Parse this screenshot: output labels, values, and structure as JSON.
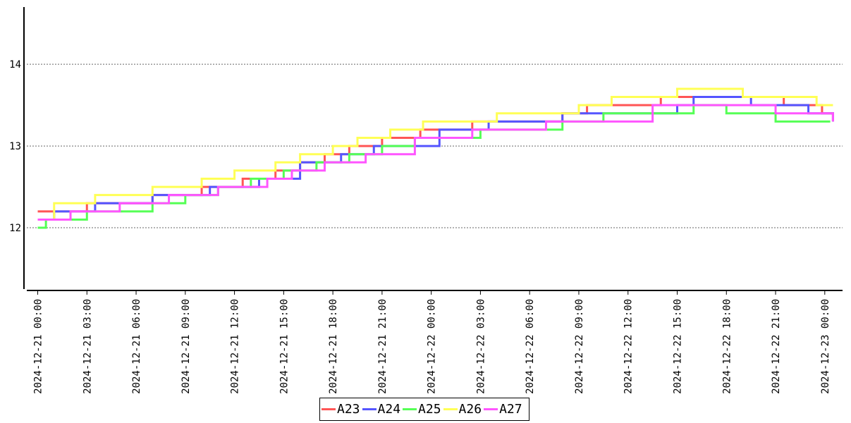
{
  "chart_data": {
    "type": "line",
    "title": "",
    "xlabel": "",
    "ylabel": "",
    "ylim": [
      11.25,
      14.7
    ],
    "yticks": [
      "12",
      "13",
      "14"
    ],
    "yticks_values": [
      12,
      13,
      14
    ],
    "grid": "horizontal dotted",
    "legend_placement": "bottom-center",
    "xlim": [
      "2024-12-20T23:20",
      "2024-12-23T01:05"
    ],
    "xticks": [
      "2024-12-21 00:00",
      "2024-12-21 03:00",
      "2024-12-21 06:00",
      "2024-12-21 09:00",
      "2024-12-21 12:00",
      "2024-12-21 15:00",
      "2024-12-21 18:00",
      "2024-12-21 21:00",
      "2024-12-22 00:00",
      "2024-12-22 03:00",
      "2024-12-22 06:00",
      "2024-12-22 09:00",
      "2024-12-22 12:00",
      "2024-12-22 15:00",
      "2024-12-22 18:00",
      "2024-12-22 21:00",
      "2024-12-23 00:00"
    ],
    "series": [
      {
        "name": "A23",
        "color": "#ff5555",
        "x": [
          "2024-12-21 00:00",
          "2024-12-21 03:00",
          "2024-12-21 07:00",
          "2024-12-21 10:00",
          "2024-12-21 12:30",
          "2024-12-21 14:30",
          "2024-12-21 16:00",
          "2024-12-21 17:30",
          "2024-12-21 19:00",
          "2024-12-21 21:00",
          "2024-12-21 23:20",
          "2024-12-22 02:30",
          "2024-12-22 05:00",
          "2024-12-22 08:00",
          "2024-12-22 09:30",
          "2024-12-22 13:00",
          "2024-12-22 14:00",
          "2024-12-22 18:00",
          "2024-12-22 21:30",
          "2024-12-22 23:50",
          "2024-12-23 00:30"
        ],
        "y": [
          12.2,
          12.3,
          12.4,
          12.5,
          12.6,
          12.7,
          12.8,
          12.9,
          13.0,
          13.1,
          13.2,
          13.3,
          13.3,
          13.4,
          13.5,
          13.5,
          13.6,
          13.6,
          13.5,
          13.4,
          13.3
        ]
      },
      {
        "name": "A24",
        "color": "#5555ff",
        "x": [
          "2024-12-21 00:00",
          "2024-12-21 01:00",
          "2024-12-21 03:30",
          "2024-12-21 07:00",
          "2024-12-21 10:30",
          "2024-12-21 13:30",
          "2024-12-21 16:00",
          "2024-12-21 18:30",
          "2024-12-21 20:30",
          "2024-12-22 00:30",
          "2024-12-22 03:30",
          "2024-12-22 08:00",
          "2024-12-22 10:00",
          "2024-12-22 15:00",
          "2024-12-22 16:00",
          "2024-12-22 19:30",
          "2024-12-22 23:00",
          "2024-12-23 00:30"
        ],
        "y": [
          12.1,
          12.2,
          12.3,
          12.4,
          12.5,
          12.6,
          12.8,
          12.9,
          13.0,
          13.2,
          13.3,
          13.4,
          13.4,
          13.5,
          13.6,
          13.5,
          13.4,
          13.3
        ]
      },
      {
        "name": "A25",
        "color": "#55ff55",
        "x": [
          "2024-12-21 00:00",
          "2024-12-21 00:30",
          "2024-12-21 03:00",
          "2024-12-21 07:00",
          "2024-12-21 09:00",
          "2024-12-21 11:00",
          "2024-12-21 13:00",
          "2024-12-21 15:00",
          "2024-12-21 17:00",
          "2024-12-21 19:00",
          "2024-12-21 21:00",
          "2024-12-21 23:00",
          "2024-12-22 03:00",
          "2024-12-22 08:00",
          "2024-12-22 10:30",
          "2024-12-22 16:00",
          "2024-12-22 18:00",
          "2024-12-22 21:00",
          "2024-12-23 00:20"
        ],
        "y": [
          12.0,
          12.1,
          12.2,
          12.3,
          12.4,
          12.5,
          12.6,
          12.7,
          12.8,
          12.9,
          13.0,
          13.1,
          13.2,
          13.3,
          13.4,
          13.5,
          13.4,
          13.3,
          13.3
        ]
      },
      {
        "name": "A26",
        "color": "#ffff55",
        "x": [
          "2024-12-21 00:00",
          "2024-12-21 01:00",
          "2024-12-21 03:30",
          "2024-12-21 07:00",
          "2024-12-21 10:00",
          "2024-12-21 12:00",
          "2024-12-21 14:30",
          "2024-12-21 16:00",
          "2024-12-21 18:00",
          "2024-12-21 19:30",
          "2024-12-21 21:30",
          "2024-12-21 23:30",
          "2024-12-22 04:00",
          "2024-12-22 09:00",
          "2024-12-22 11:00",
          "2024-12-22 15:00",
          "2024-12-22 19:00",
          "2024-12-22 23:30",
          "2024-12-23 00:30"
        ],
        "y": [
          12.1,
          12.3,
          12.4,
          12.5,
          12.6,
          12.7,
          12.8,
          12.9,
          13.0,
          13.1,
          13.2,
          13.3,
          13.4,
          13.5,
          13.6,
          13.7,
          13.6,
          13.5,
          13.5
        ]
      },
      {
        "name": "A27",
        "color": "#ff55ff",
        "x": [
          "2024-12-21 00:00",
          "2024-12-21 02:00",
          "2024-12-21 05:00",
          "2024-12-21 08:00",
          "2024-12-21 11:00",
          "2024-12-21 14:00",
          "2024-12-21 15:30",
          "2024-12-21 17:30",
          "2024-12-21 20:00",
          "2024-12-21 23:00",
          "2024-12-22 02:30",
          "2024-12-22 05:30",
          "2024-12-22 07:00",
          "2024-12-22 13:30",
          "2024-12-22 21:00",
          "2024-12-23 00:30"
        ],
        "y": [
          12.1,
          12.2,
          12.3,
          12.4,
          12.5,
          12.6,
          12.7,
          12.8,
          12.9,
          13.1,
          13.2,
          13.2,
          13.3,
          13.5,
          13.4,
          13.3
        ]
      }
    ]
  }
}
